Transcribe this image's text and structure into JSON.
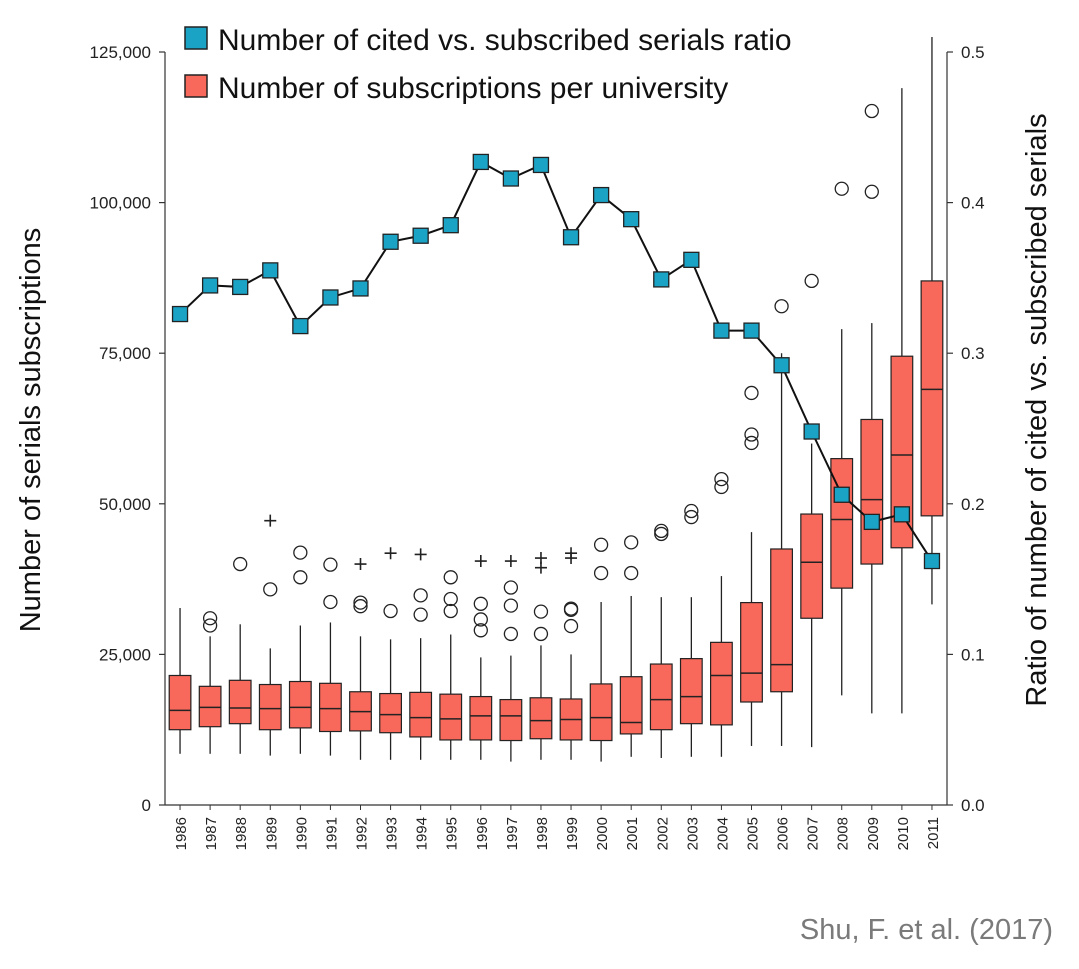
{
  "chart_data": {
    "type": "box+line",
    "title": "",
    "xlabel": "",
    "ylabel_left": "Number of serials subscriptions",
    "ylabel_right": "Ratio of number of cited vs. subscribed serials",
    "ylim_left": [
      0,
      125000
    ],
    "ylim_right": [
      0.0,
      0.5
    ],
    "yticks_left": [
      "0",
      "25,000",
      "50,000",
      "75,000",
      "100,000",
      "125,000"
    ],
    "yticks_left_values": [
      0,
      25000,
      50000,
      75000,
      100000,
      125000
    ],
    "yticks_right": [
      "0.0",
      "0.1",
      "0.2",
      "0.3",
      "0.4",
      "0.5"
    ],
    "yticks_right_values": [
      0.0,
      0.1,
      0.2,
      0.3,
      0.4,
      0.5
    ],
    "legend": [
      {
        "label": "Number of cited vs. subscribed serials ratio",
        "color": "#1ba3c6",
        "marker": "square"
      },
      {
        "label": "Number of subscriptions per university",
        "color": "#f8695c",
        "marker": "box"
      }
    ],
    "categories": [
      "1986",
      "1987",
      "1988",
      "1989",
      "1990",
      "1991",
      "1992",
      "1993",
      "1994",
      "1995",
      "1996",
      "1997",
      "1998",
      "1999",
      "2000",
      "2001",
      "2002",
      "2003",
      "2004",
      "2005",
      "2006",
      "2007",
      "2008",
      "2009",
      "2010",
      "2011"
    ],
    "ratio_series": {
      "name": "Number of cited vs. subscribed serials ratio",
      "values": [
        0.326,
        0.345,
        0.344,
        0.355,
        0.318,
        0.337,
        0.343,
        0.374,
        0.378,
        0.385,
        0.427,
        0.416,
        0.425,
        0.377,
        0.405,
        0.389,
        0.349,
        0.362,
        0.315,
        0.315,
        0.292,
        0.248,
        0.206,
        0.188,
        0.193,
        0.162
      ]
    },
    "boxes": [
      {
        "whisker_low": 8500,
        "q1": 12500,
        "median": 15700,
        "q3": 21500,
        "whisker_high": 32700,
        "outliers_circle": [],
        "outliers_plus": []
      },
      {
        "whisker_low": 8500,
        "q1": 13000,
        "median": 16200,
        "q3": 19700,
        "whisker_high": 28000,
        "outliers_circle": [
          29800,
          31000
        ],
        "outliers_plus": []
      },
      {
        "whisker_low": 8500,
        "q1": 13500,
        "median": 16100,
        "q3": 20700,
        "whisker_high": 30000,
        "outliers_circle": [
          40000
        ],
        "outliers_plus": []
      },
      {
        "whisker_low": 8200,
        "q1": 12500,
        "median": 16000,
        "q3": 20000,
        "whisker_high": 26000,
        "outliers_circle": [
          35800
        ],
        "outliers_plus": [
          47200
        ]
      },
      {
        "whisker_low": 8500,
        "q1": 12800,
        "median": 16200,
        "q3": 20500,
        "whisker_high": 29800,
        "outliers_circle": [
          37800,
          41900
        ],
        "outliers_plus": []
      },
      {
        "whisker_low": 8200,
        "q1": 12200,
        "median": 16000,
        "q3": 20200,
        "whisker_high": 30300,
        "outliers_circle": [
          33700,
          39900
        ],
        "outliers_plus": []
      },
      {
        "whisker_low": 7500,
        "q1": 12300,
        "median": 15500,
        "q3": 18800,
        "whisker_high": 28000,
        "outliers_circle": [
          33000,
          33600
        ],
        "outliers_plus": [
          40000
        ]
      },
      {
        "whisker_low": 7500,
        "q1": 12000,
        "median": 15000,
        "q3": 18500,
        "whisker_high": 27500,
        "outliers_circle": [
          32200
        ],
        "outliers_plus": [
          41800
        ]
      },
      {
        "whisker_low": 7500,
        "q1": 11300,
        "median": 14500,
        "q3": 18700,
        "whisker_high": 27700,
        "outliers_circle": [
          31600,
          34800
        ],
        "outliers_plus": [
          41600
        ]
      },
      {
        "whisker_low": 7500,
        "q1": 10800,
        "median": 14300,
        "q3": 18400,
        "whisker_high": 28300,
        "outliers_circle": [
          32200,
          34200,
          37800
        ],
        "outliers_plus": []
      },
      {
        "whisker_low": 7500,
        "q1": 10800,
        "median": 14800,
        "q3": 18000,
        "whisker_high": 24500,
        "outliers_circle": [
          29000,
          30800,
          33400
        ],
        "outliers_plus": [
          40500
        ]
      },
      {
        "whisker_low": 7200,
        "q1": 10700,
        "median": 14800,
        "q3": 17500,
        "whisker_high": 24800,
        "outliers_circle": [
          28400,
          33100,
          36100
        ],
        "outliers_plus": [
          40500
        ]
      },
      {
        "whisker_low": 7500,
        "q1": 11000,
        "median": 14000,
        "q3": 17800,
        "whisker_high": 26500,
        "outliers_circle": [
          28400,
          32100
        ],
        "outliers_plus": [
          39400,
          41000
        ]
      },
      {
        "whisker_low": 7500,
        "q1": 10800,
        "median": 14200,
        "q3": 17600,
        "whisker_high": 25000,
        "outliers_circle": [
          29700,
          32400,
          32600
        ],
        "outliers_plus": [
          41000,
          41800
        ]
      },
      {
        "whisker_low": 7200,
        "q1": 10700,
        "median": 14500,
        "q3": 20100,
        "whisker_high": 33700,
        "outliers_circle": [
          38500,
          43200
        ],
        "outliers_plus": []
      },
      {
        "whisker_low": 8000,
        "q1": 11800,
        "median": 13700,
        "q3": 21300,
        "whisker_high": 34700,
        "outliers_circle": [
          38500,
          43600
        ],
        "outliers_plus": []
      },
      {
        "whisker_low": 7800,
        "q1": 12500,
        "median": 17500,
        "q3": 23400,
        "whisker_high": 34500,
        "outliers_circle": [
          45000,
          45500
        ],
        "outliers_plus": []
      },
      {
        "whisker_low": 8000,
        "q1": 13500,
        "median": 18000,
        "q3": 24300,
        "whisker_high": 34500,
        "outliers_circle": [
          47800,
          48800
        ],
        "outliers_plus": []
      },
      {
        "whisker_low": 8000,
        "q1": 13300,
        "median": 21500,
        "q3": 27000,
        "whisker_high": 38000,
        "outliers_circle": [
          52800,
          54100
        ],
        "outliers_plus": []
      },
      {
        "whisker_low": 9800,
        "q1": 17100,
        "median": 21900,
        "q3": 33600,
        "whisker_high": 45300,
        "outliers_circle": [
          60100,
          61500,
          68400
        ],
        "outliers_plus": []
      },
      {
        "whisker_low": 9800,
        "q1": 18800,
        "median": 23300,
        "q3": 42500,
        "whisker_high": 75000,
        "outliers_circle": [
          82800
        ],
        "outliers_plus": []
      },
      {
        "whisker_low": 9600,
        "q1": 31000,
        "median": 40300,
        "q3": 48300,
        "whisker_high": 60000,
        "outliers_circle": [
          87000
        ],
        "outliers_plus": []
      },
      {
        "whisker_low": 18200,
        "q1": 36000,
        "median": 47400,
        "q3": 57500,
        "whisker_high": 79000,
        "outliers_circle": [
          102300
        ],
        "outliers_plus": []
      },
      {
        "whisker_low": 15200,
        "q1": 40000,
        "median": 50700,
        "q3": 64000,
        "whisker_high": 80000,
        "outliers_circle": [
          101800,
          115200
        ],
        "outliers_plus": []
      },
      {
        "whisker_low": 15200,
        "q1": 42700,
        "median": 58100,
        "q3": 74500,
        "whisker_high": 119000,
        "outliers_circle": [],
        "outliers_plus": []
      },
      {
        "whisker_low": 33300,
        "q1": 48000,
        "median": 69000,
        "q3": 87000,
        "whisker_high": 127500,
        "outliers_circle": [],
        "outliers_plus": []
      }
    ],
    "colors": {
      "box_fill": "#f8695c",
      "marker_fill": "#1ba3c6",
      "line": "#111111"
    }
  },
  "credit": "Shu, F. et al. (2017)"
}
